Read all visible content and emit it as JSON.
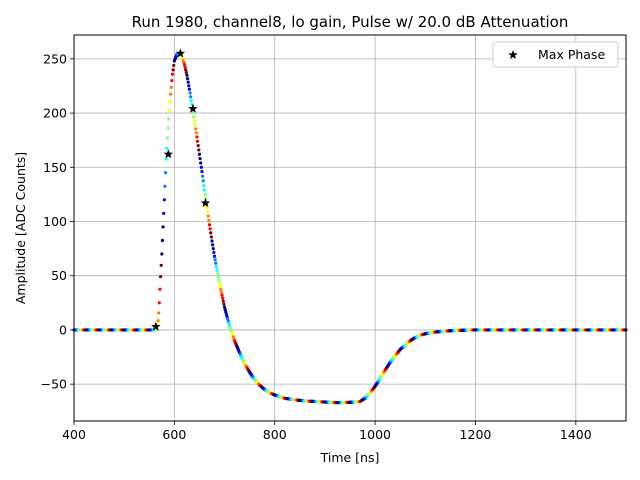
{
  "chart_data": {
    "type": "scatter",
    "title": "Run 1980, channel8, lo gain, Pulse w/ 20.0 dB Attenuation",
    "xlabel": "Time [ns]",
    "ylabel": "Amplitude [ADC Counts]",
    "xlim": [
      400,
      1500
    ],
    "ylim": [
      -84,
      272
    ],
    "xticks": [
      400,
      600,
      800,
      1000,
      1200,
      1400
    ],
    "yticks": [
      -50,
      0,
      50,
      100,
      150,
      200,
      250
    ],
    "grid": true,
    "legend": {
      "placement": "top-right",
      "entries": [
        "Max Phase"
      ]
    },
    "colormap": [
      "#00007f",
      "#0000ff",
      "#007fff",
      "#00ffff",
      "#7fff7f",
      "#ffff00",
      "#ff7f00",
      "#ff0000",
      "#7f0000"
    ],
    "pulse_points": [
      [
        400,
        0
      ],
      [
        560,
        0
      ],
      [
        563,
        1
      ],
      [
        566,
        4
      ],
      [
        568,
        10
      ],
      [
        570,
        25
      ],
      [
        572,
        45
      ],
      [
        575,
        70
      ],
      [
        578,
        100
      ],
      [
        581,
        130
      ],
      [
        584,
        160
      ],
      [
        588,
        190
      ],
      [
        592,
        215
      ],
      [
        596,
        235
      ],
      [
        600,
        248
      ],
      [
        605,
        254
      ],
      [
        610,
        255
      ],
      [
        615,
        252
      ],
      [
        620,
        245
      ],
      [
        625,
        235
      ],
      [
        630,
        222
      ],
      [
        635,
        208
      ],
      [
        640,
        193
      ],
      [
        645,
        178
      ],
      [
        650,
        162
      ],
      [
        655,
        146
      ],
      [
        660,
        129
      ],
      [
        665,
        113
      ],
      [
        670,
        97
      ],
      [
        675,
        82
      ],
      [
        680,
        68
      ],
      [
        685,
        55
      ],
      [
        690,
        43
      ],
      [
        695,
        32
      ],
      [
        700,
        21
      ],
      [
        705,
        12
      ],
      [
        710,
        4
      ],
      [
        720,
        -10
      ],
      [
        730,
        -21
      ],
      [
        740,
        -31
      ],
      [
        750,
        -39
      ],
      [
        760,
        -46
      ],
      [
        770,
        -51
      ],
      [
        780,
        -55
      ],
      [
        790,
        -58
      ],
      [
        800,
        -60
      ],
      [
        820,
        -63
      ],
      [
        840,
        -64.5
      ],
      [
        860,
        -65.5
      ],
      [
        880,
        -66
      ],
      [
        900,
        -66.5
      ],
      [
        920,
        -67
      ],
      [
        940,
        -67
      ],
      [
        960,
        -66.5
      ],
      [
        970,
        -66
      ],
      [
        980,
        -63
      ],
      [
        990,
        -58
      ],
      [
        1000,
        -52
      ],
      [
        1010,
        -45
      ],
      [
        1020,
        -37
      ],
      [
        1030,
        -30
      ],
      [
        1040,
        -24
      ],
      [
        1050,
        -18
      ],
      [
        1060,
        -14
      ],
      [
        1070,
        -10
      ],
      [
        1080,
        -7
      ],
      [
        1090,
        -5
      ],
      [
        1100,
        -3.5
      ],
      [
        1120,
        -2
      ],
      [
        1140,
        -1
      ],
      [
        1160,
        -0.5
      ],
      [
        1200,
        0
      ],
      [
        1500,
        0
      ]
    ],
    "max_phase_points": [
      {
        "x": 563,
        "y": 3
      },
      {
        "x": 588,
        "y": 162
      },
      {
        "x": 612,
        "y": 255
      },
      {
        "x": 637,
        "y": 204
      },
      {
        "x": 662,
        "y": 117
      }
    ],
    "marker_color": "#000000"
  }
}
